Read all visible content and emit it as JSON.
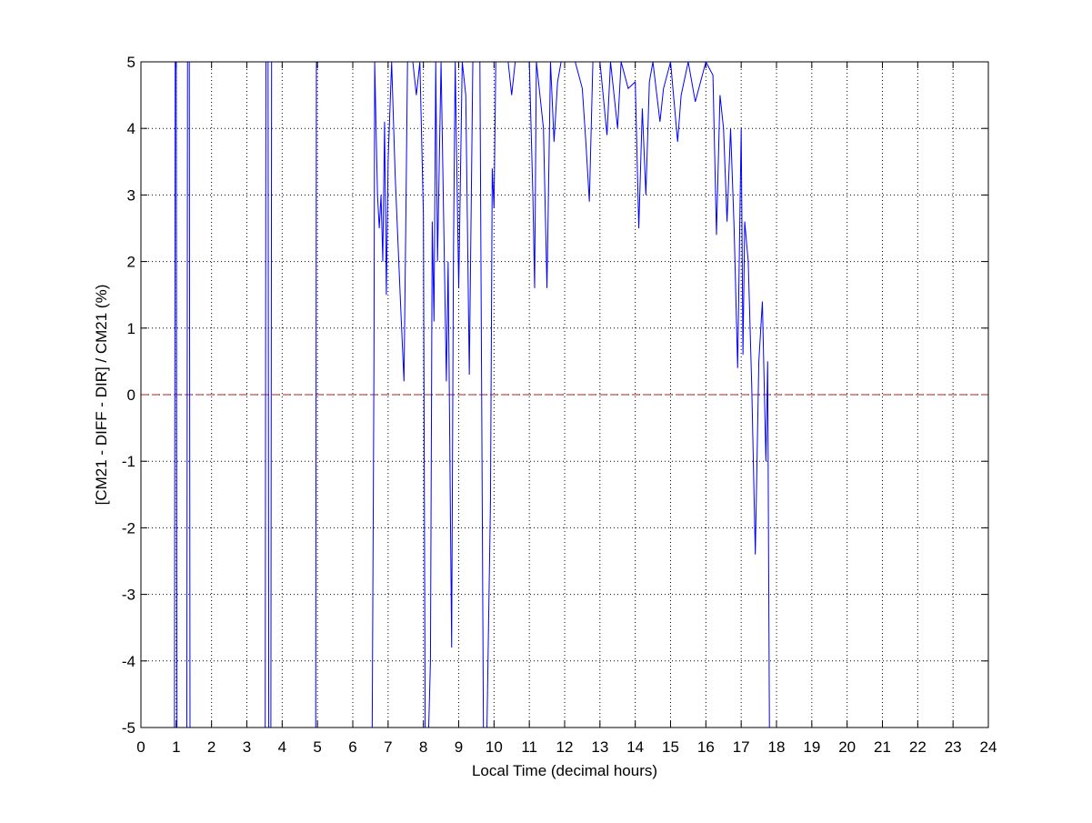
{
  "chart_data": {
    "type": "line",
    "xlabel": "Local Time (decimal hours)",
    "ylabel": "[CM21 - DIFF - DIR] / CM21 (%)",
    "xlim": [
      0,
      24
    ],
    "xticks": [
      0,
      1,
      2,
      3,
      4,
      5,
      6,
      7,
      8,
      9,
      10,
      11,
      12,
      13,
      14,
      15,
      16,
      17,
      18,
      19,
      20,
      21,
      22,
      23,
      24
    ],
    "ylim": [
      -5,
      5
    ],
    "yticks": [
      -5,
      -4,
      -3,
      -2,
      -1,
      0,
      1,
      2,
      3,
      4,
      5
    ],
    "grid": true,
    "reference_line": {
      "value": 0,
      "color": "#b22222"
    },
    "series": [
      {
        "color": "#0000ff",
        "x": [
          0.95,
          0.97,
          1.0,
          1.02,
          null,
          1.3,
          1.32,
          1.37,
          1.39,
          null,
          3.52,
          3.54,
          3.6,
          3.62,
          3.68,
          3.7,
          null,
          4.95,
          4.97,
          null,
          6.55,
          6.6,
          6.62,
          6.7,
          6.75,
          6.8,
          6.85,
          6.9,
          6.95,
          7.0,
          7.1,
          7.2,
          7.35,
          7.45,
          7.5,
          7.55,
          7.7,
          7.8,
          7.9,
          8.0,
          8.05,
          8.15,
          8.2,
          8.25,
          8.3,
          8.35,
          8.4,
          8.5,
          8.6,
          8.65,
          8.7,
          8.8,
          8.85,
          8.9,
          9.0,
          9.1,
          9.2,
          9.3,
          9.4,
          9.6,
          9.7,
          9.8,
          9.9,
          9.95,
          10.0,
          10.05,
          10.4,
          10.5,
          10.6,
          11.0,
          11.1,
          11.15,
          11.2,
          11.4,
          11.5,
          11.6,
          11.7,
          11.8,
          11.9,
          12.3,
          12.5,
          12.6,
          12.7,
          12.8,
          13.0,
          13.2,
          13.3,
          13.5,
          13.6,
          13.8,
          14.0,
          14.1,
          14.2,
          14.3,
          14.4,
          14.5,
          14.7,
          14.8,
          15.0,
          15.2,
          15.3,
          15.5,
          15.7,
          15.9,
          16.0,
          16.2,
          16.3,
          16.4,
          16.5,
          16.6,
          16.7,
          16.8,
          16.9,
          17.0,
          17.05,
          17.1,
          17.2,
          17.3,
          17.4,
          17.5,
          17.6,
          17.7,
          17.75,
          17.8
        ],
        "values": [
          -5,
          5,
          5,
          -5,
          null,
          -5,
          5,
          5,
          -5,
          null,
          -5,
          5,
          5,
          -5,
          -5,
          5,
          null,
          -5,
          5,
          null,
          -5,
          0.5,
          5,
          3.0,
          2.5,
          3.0,
          2.0,
          4.1,
          1.5,
          3.5,
          5,
          3.3,
          1.4,
          0.2,
          2.5,
          5,
          5,
          4.5,
          5,
          2.7,
          -5,
          -5,
          -4.0,
          2.6,
          1.1,
          5,
          2.0,
          5,
          1.8,
          0.2,
          2.0,
          -3.8,
          2.0,
          5,
          1.6,
          5,
          4.5,
          0.3,
          5,
          5,
          -5,
          -5,
          -1.6,
          3.4,
          2.8,
          5,
          5,
          4.5,
          5,
          5,
          3.0,
          1.6,
          5,
          4.0,
          1.6,
          5,
          3.8,
          4.7,
          5,
          5,
          4.6,
          3.8,
          2.9,
          5,
          5,
          3.9,
          5,
          4.0,
          5,
          4.6,
          4.7,
          2.5,
          4.3,
          3.0,
          4.7,
          5,
          4.1,
          4.6,
          5,
          3.8,
          4.5,
          5,
          4.4,
          4.8,
          5,
          4.8,
          2.4,
          4.5,
          4.0,
          2.6,
          4.0,
          2.5,
          0.4,
          4.0,
          0.6,
          2.6,
          2.0,
          0.1,
          -2.4,
          0.5,
          1.4,
          -1.0,
          0.5,
          -5
        ]
      }
    ]
  }
}
